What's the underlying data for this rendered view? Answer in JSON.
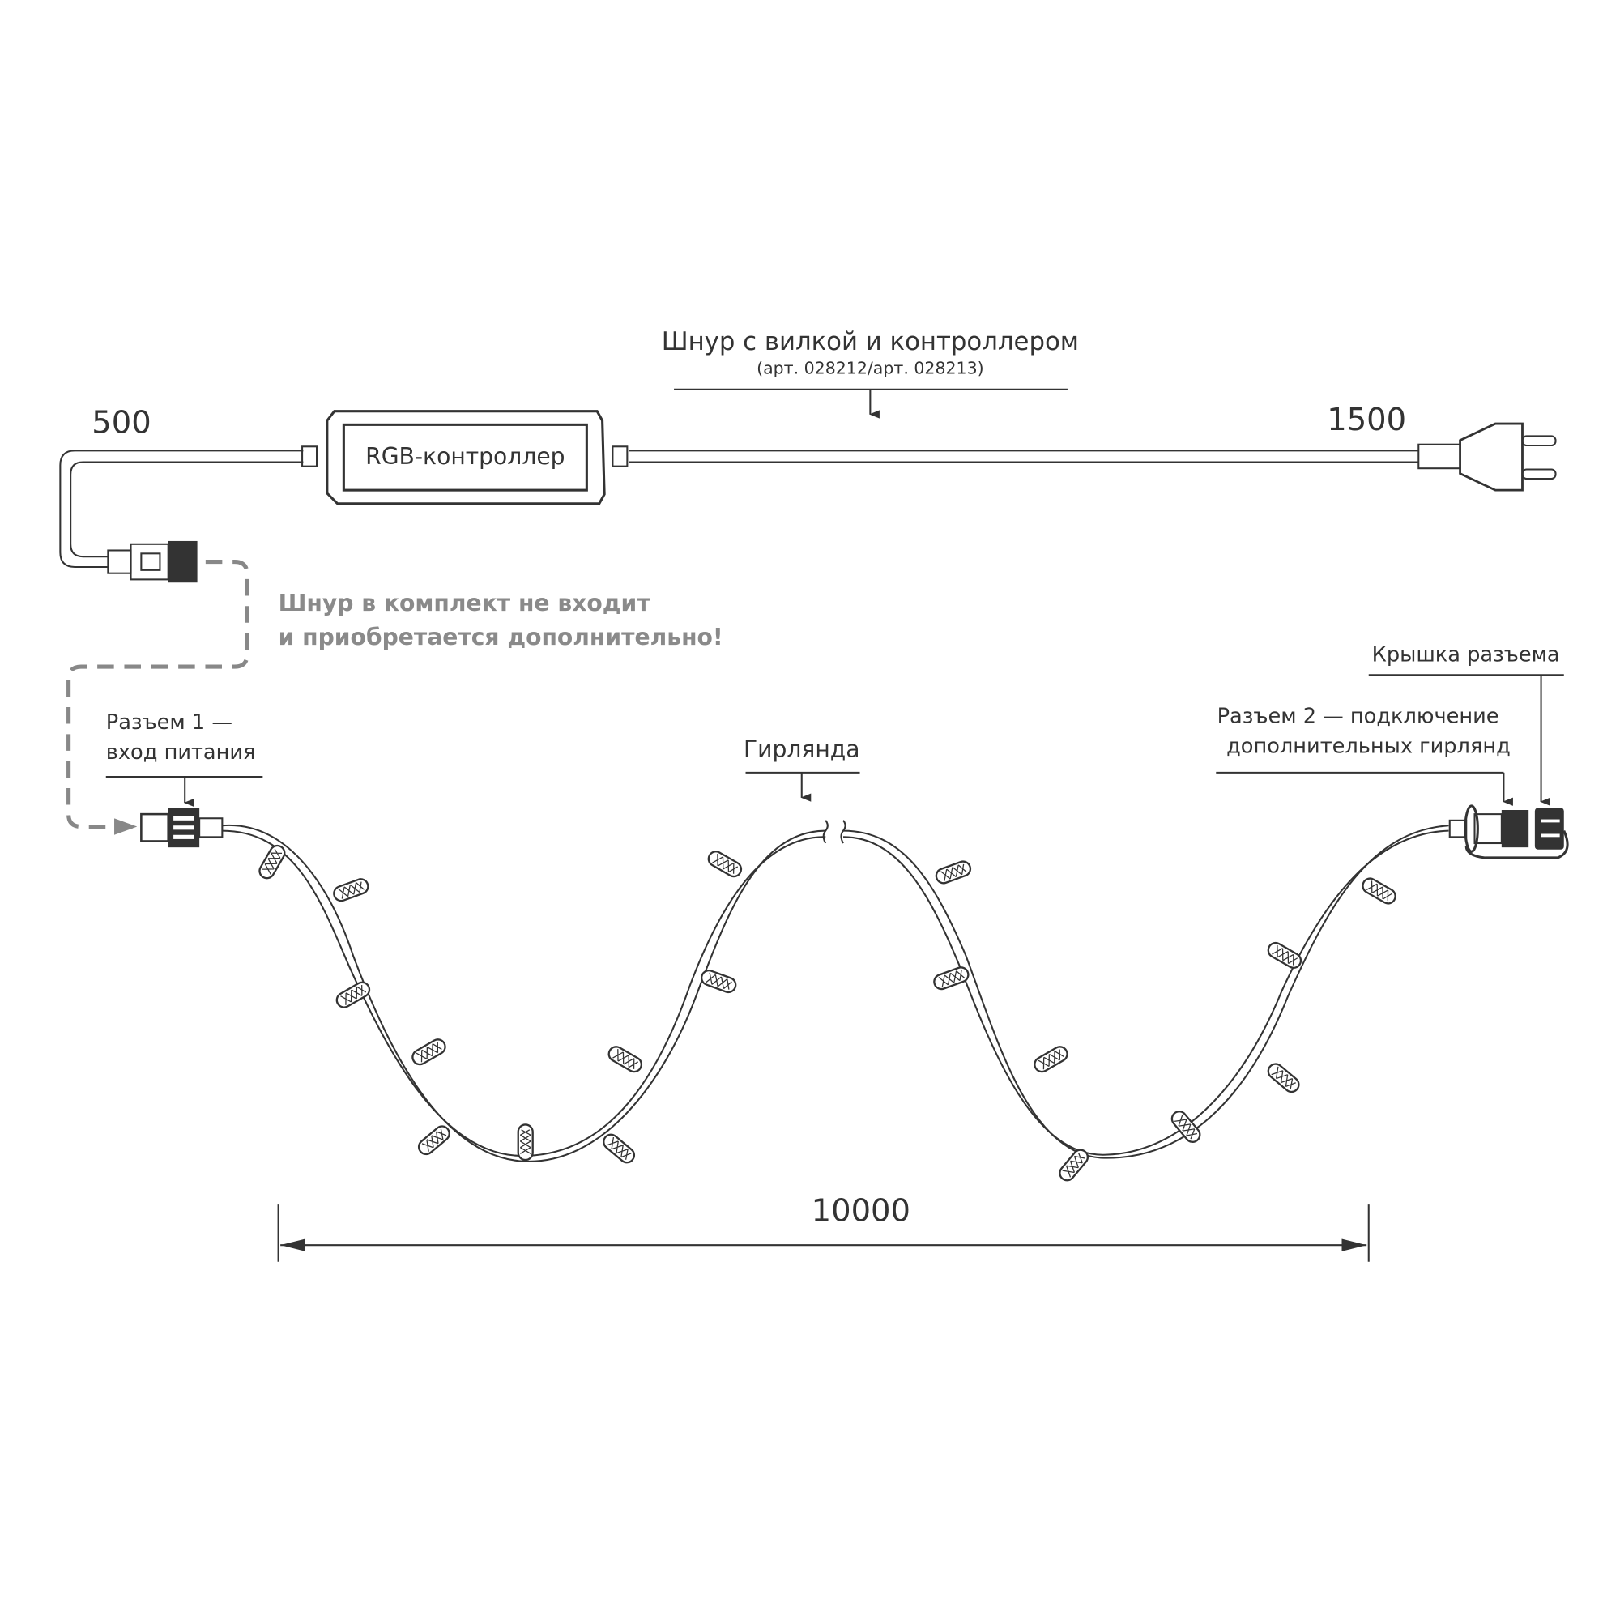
{
  "cord": {
    "title": "Шнур с вилкой и контроллером",
    "article": "(арт. 028212/арт. 028213)",
    "controller_label": "RGB-контроллер",
    "length_left": "500",
    "length_right": "1500"
  },
  "note": {
    "line1": "Шнур в комплект не входит",
    "line2": "и приобретается дополнительно!"
  },
  "connector1": {
    "line1": "Разъем 1 —",
    "line2": "вход питания"
  },
  "garland": {
    "label": "Гирлянда",
    "length": "10000"
  },
  "connector2": {
    "line1": "Разъем 2 — подключение",
    "line2": "дополнительных гирлянд"
  },
  "cap": {
    "label": "Крышка разъема"
  },
  "colors": {
    "line": "#333333",
    "note": "#8a8a8a"
  }
}
